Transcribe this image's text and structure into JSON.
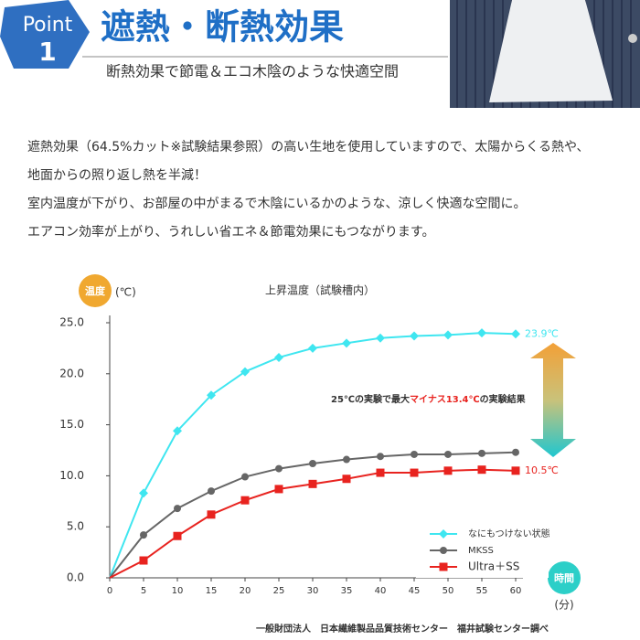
{
  "header": {
    "badge_word": "Point",
    "badge_number": "1",
    "title": "遮熱・断熱効果",
    "subtitle": "断熱効果で節電＆エコ木陰のような快適空間"
  },
  "body": {
    "paragraphs": [
      "遮熱効果（64.5%カット※試験結果参照）の高い生地を使用していますので、太陽からくる熱や、",
      "地面からの照り返し熱を半減！",
      "室内温度が下がり、お部屋の中がまるで木陰にいるかのような、涼しく快適な空間に。",
      "エアコン効率が上がり、うれしい省エネ＆節電効果にもつながります。"
    ]
  },
  "chart_data": {
    "type": "line",
    "title": "上昇温度（試験槽内）",
    "y_label": "温度",
    "y_unit": "(℃)",
    "x_label": "時間",
    "x_unit": "(分)",
    "x": [
      0,
      5,
      10,
      15,
      20,
      25,
      30,
      35,
      40,
      45,
      50,
      55,
      60
    ],
    "xlim": [
      0,
      60
    ],
    "xticks": [
      0,
      5,
      10,
      15,
      20,
      25,
      30,
      35,
      40,
      45,
      50,
      55,
      60
    ],
    "ylim": [
      0,
      25
    ],
    "yticks": [
      {
        "value": 0,
        "label": "0.0"
      },
      {
        "value": 5,
        "label": "5.0"
      },
      {
        "value": 10,
        "label": "10.0"
      },
      {
        "value": 15,
        "label": "15.0"
      },
      {
        "value": 20,
        "label": "20.0"
      },
      {
        "value": 25,
        "label": "25.0"
      }
    ],
    "grid": false,
    "series": [
      {
        "name": "なにもつけない状態",
        "color": "#3fe6f0",
        "marker": "diamond",
        "values": [
          0,
          8.3,
          14.4,
          17.9,
          20.2,
          21.6,
          22.5,
          23.0,
          23.5,
          23.7,
          23.8,
          24.0,
          23.9
        ],
        "value_labels": [
          null,
          null,
          null,
          null,
          null,
          null,
          null,
          null,
          null,
          null,
          null,
          null,
          "23.9℃"
        ]
      },
      {
        "name": "MKSS",
        "color": "#666666",
        "marker": "circle",
        "values": [
          0,
          4.2,
          6.8,
          8.5,
          9.9,
          10.7,
          11.2,
          11.6,
          11.9,
          12.1,
          12.1,
          12.2,
          12.3
        ]
      },
      {
        "name": "Ultra＋SS",
        "color": "#e8231f",
        "marker": "square",
        "values": [
          0,
          1.7,
          4.1,
          6.2,
          7.6,
          8.7,
          9.2,
          9.7,
          10.3,
          10.3,
          10.5,
          10.6,
          10.5
        ],
        "value_labels": [
          null,
          null,
          null,
          null,
          null,
          null,
          null,
          null,
          null,
          null,
          null,
          null,
          "10.5℃"
        ]
      }
    ],
    "annotation": [
      "25℃の実験で最大",
      "マイナス13.4℃",
      "の実験結果"
    ],
    "source": "一般財団法人　日本繊維製品品質技術センター　福井試験センター調べ"
  }
}
